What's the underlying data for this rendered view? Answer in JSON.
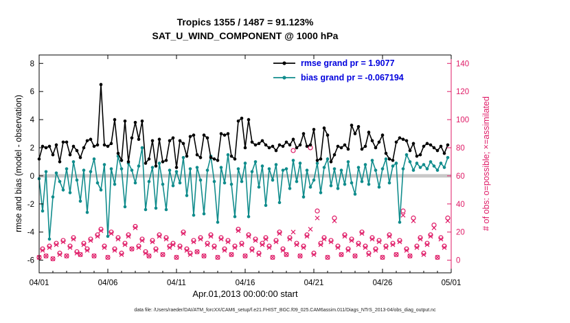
{
  "footer": {
    "caption": "data file: /Users/raeder/DAI/ATM_forcXX/CAM6_setup/f.e21.FHIST_BGC.f09_025.CAM6assim.011/Diags_NTrS_2013-04/obs_diag_output.nc"
  },
  "chart_data": {
    "type": "line",
    "title": "Tropics 1355 / 1487 = 91.123%",
    "subtitle": "SAT_U_WIND_COMPONENT @ 1000 hPa",
    "xlabel": "Apr.01,2013 00:00:00 start",
    "ylabel_left": "rmse and bias (model - observation)",
    "ylabel_right": "# of obs: o=possible; ×=assimilated",
    "xlim": [
      1,
      31
    ],
    "ylim_left": [
      -6.9,
      8.6
    ],
    "ylim_right": [
      -9,
      146
    ],
    "xticks": [
      {
        "v": 1,
        "label": "04/01"
      },
      {
        "v": 6,
        "label": "04/06"
      },
      {
        "v": 11,
        "label": "04/11"
      },
      {
        "v": 16,
        "label": "04/16"
      },
      {
        "v": 21,
        "label": "04/21"
      },
      {
        "v": 26,
        "label": "04/26"
      },
      {
        "v": 31,
        "label": "05/01"
      }
    ],
    "yticks_left": [
      -6,
      -4,
      -2,
      0,
      2,
      4,
      6,
      8
    ],
    "yticks_right": [
      0,
      20,
      40,
      60,
      80,
      100,
      120,
      140
    ],
    "colors": {
      "rmse": "#000000",
      "bias": "#108c8c",
      "obs": "#df1a66",
      "legend_text": "#0000dd",
      "zero_band": "#c8c8c8",
      "axis": "#000000"
    },
    "legend": [
      {
        "label": "rmse grand pr = 1.9077",
        "color": "#000000"
      },
      {
        "label": "bias grand pr = -0.067194",
        "color": "#108c8c"
      }
    ],
    "x": {
      "start": 1,
      "step": 0.25
    },
    "series": [
      {
        "name": "possible",
        "axis": "right",
        "marker": "circle-open",
        "line": false,
        "values": [
          2,
          8,
          3,
          10,
          1,
          12,
          5,
          14,
          3,
          10,
          16,
          6,
          4,
          12,
          8,
          15,
          3,
          18,
          22,
          10,
          2,
          20,
          8,
          16,
          5,
          12,
          18,
          8,
          24,
          10,
          15,
          6,
          3,
          14,
          8,
          18,
          4,
          16,
          10,
          12,
          2,
          10,
          20,
          8,
          5,
          14,
          6,
          16,
          3,
          12,
          18,
          10,
          2,
          16,
          8,
          14,
          4,
          10,
          22,
          12,
          3,
          18,
          8,
          15,
          5,
          12,
          16,
          10,
          2,
          14,
          20,
          8,
          4,
          16,
          78,
          12,
          3,
          10,
          18,
          80,
          5,
          35,
          12,
          16,
          2,
          14,
          30,
          10,
          4,
          18,
          8,
          15,
          3,
          12,
          20,
          10,
          5,
          16,
          8,
          14,
          2,
          10,
          18,
          12,
          4,
          14,
          35,
          8,
          3,
          30,
          10,
          16,
          5,
          12,
          18,
          25,
          2,
          16,
          10,
          30
        ]
      },
      {
        "name": "assimilated",
        "axis": "right",
        "marker": "x",
        "line": false,
        "values": [
          2,
          7,
          3,
          9,
          1,
          11,
          4,
          13,
          3,
          9,
          15,
          5,
          4,
          11,
          7,
          14,
          3,
          17,
          21,
          9,
          2,
          19,
          7,
          15,
          4,
          11,
          17,
          8,
          23,
          9,
          14,
          5,
          3,
          13,
          7,
          17,
          4,
          15,
          9,
          11,
          2,
          9,
          19,
          7,
          4,
          13,
          6,
          15,
          3,
          11,
          17,
          9,
          2,
          15,
          7,
          13,
          4,
          9,
          21,
          11,
          3,
          17,
          7,
          14,
          4,
          11,
          15,
          9,
          2,
          13,
          19,
          7,
          4,
          15,
          20,
          11,
          3,
          9,
          17,
          22,
          4,
          30,
          11,
          15,
          2,
          13,
          28,
          9,
          4,
          17,
          7,
          14,
          3,
          11,
          19,
          9,
          4,
          15,
          7,
          13,
          2,
          9,
          17,
          11,
          4,
          13,
          32,
          7,
          3,
          28,
          9,
          15,
          4,
          11,
          17,
          23,
          2,
          15,
          9,
          28
        ]
      },
      {
        "name": "bias",
        "axis": "left",
        "marker": "dot",
        "line": true,
        "values": [
          -0.2,
          -2.5,
          0.3,
          -4.5,
          -1.5,
          0.2,
          -0.4,
          -1.0,
          0.5,
          -1.2,
          1.0,
          -0.3,
          -1.8,
          0.4,
          -2.6,
          0.3,
          1.2,
          -0.5,
          -1.0,
          0.8,
          -4.3,
          0.5,
          -0.6,
          1.4,
          0.5,
          -2.2,
          0.9,
          0.4,
          -0.5,
          0.7,
          2.0,
          -2.4,
          -0.4,
          0.6,
          -2.3,
          0.9,
          -0.6,
          -2.4,
          0.4,
          -0.7,
          0.3,
          -0.5,
          1.3,
          -1.4,
          0.5,
          -2.8,
          0.6,
          -0.3,
          -2.7,
          0.4,
          1.4,
          -0.4,
          -3.3,
          0.6,
          -0.5,
          1.5,
          -0.6,
          -2.9,
          0.5,
          -0.4,
          0.9,
          -2.9,
          0.3,
          1.0,
          -0.8,
          0.7,
          -2.1,
          0.5,
          -0.3,
          0.8,
          -1.9,
          0.4,
          0.5,
          -0.9,
          1.1,
          -0.4,
          0.9,
          -1.5,
          0.4,
          -0.8,
          -0.3,
          0.9,
          -1.2,
          0.6,
          1.2,
          -0.7,
          0.5,
          -0.9,
          0.4,
          -0.6,
          1.0,
          -0.5,
          -1.3,
          0.6,
          -0.4,
          0.8,
          -0.6,
          1.1,
          0.4,
          -0.8,
          0.5,
          1.2,
          -0.5,
          0.7,
          0.9,
          -3.3,
          0.5,
          1.5,
          1.0,
          0.4,
          0.9,
          0.6,
          0.8,
          0.5,
          1.0,
          0.7,
          0.4,
          0.9,
          0.6,
          1.3
        ]
      },
      {
        "name": "rmse",
        "axis": "left",
        "marker": "dot",
        "line": true,
        "values": [
          1.2,
          2.1,
          2.0,
          2.1,
          1.5,
          2.2,
          1.0,
          2.4,
          2.4,
          1.5,
          2.1,
          1.8,
          1.3,
          2.0,
          2.5,
          2.6,
          2.1,
          2.2,
          6.5,
          2.2,
          2.1,
          2.3,
          4.0,
          1.6,
          1.1,
          3.9,
          1.0,
          2.7,
          3.8,
          2.6,
          3.9,
          0.9,
          1.2,
          2.5,
          0.7,
          2.6,
          1.0,
          1.1,
          2.5,
          2.7,
          0.6,
          2.5,
          2.3,
          1.4,
          2.8,
          2.9,
          1.5,
          1.3,
          2.9,
          2.7,
          1.3,
          1.2,
          1.1,
          3.0,
          2.9,
          3.0,
          1.4,
          1.2,
          3.9,
          4.1,
          2.0,
          4.0,
          2.4,
          2.2,
          2.3,
          2.5,
          2.2,
          2.0,
          2.1,
          1.8,
          2.2,
          2.1,
          2.4,
          2.2,
          2.6,
          2.0,
          2.2,
          3.0,
          2.1,
          2.2,
          3.3,
          1.1,
          1.2,
          3.4,
          2.9,
          1.0,
          1.5,
          2.1,
          2.0,
          2.2,
          1.9,
          3.6,
          3.0,
          3.5,
          1.9,
          2.1,
          3.1,
          2.5,
          2.0,
          2.4,
          2.9,
          1.6,
          1.2,
          1.1,
          2.4,
          2.7,
          2.6,
          2.5,
          1.8,
          2.3,
          1.4,
          1.5,
          2.1,
          2.3,
          2.2,
          2.0,
          1.8,
          2.1,
          1.6,
          2.2
        ]
      }
    ]
  }
}
